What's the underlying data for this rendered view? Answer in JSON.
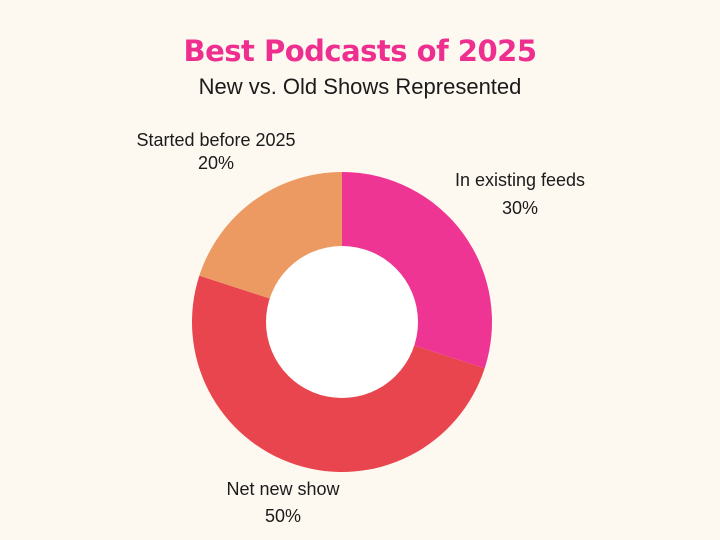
{
  "chart_data": {
    "type": "pie",
    "title": "Best Podcasts of 2025",
    "subtitle": "New vs. Old Shows Represented",
    "donut": true,
    "slices": [
      {
        "label": "In existing feeds",
        "value": 30,
        "value_text": "30%",
        "color": "#ee3593"
      },
      {
        "label": "Net new show",
        "value": 50,
        "value_text": "50%",
        "color": "#e8454e"
      },
      {
        "label": "Started before 2025",
        "value": 20,
        "value_text": "20%",
        "color": "#ec9a62"
      }
    ]
  },
  "colors": {
    "background": "#fdf8f0",
    "title": "#ee2f8f",
    "text": "#1b1b1b",
    "hole": "#ffffff"
  }
}
